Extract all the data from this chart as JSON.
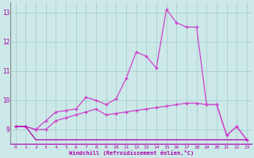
{
  "xlabel": "Windchill (Refroidissement éolien,°C)",
  "bg_color": "#cce8e8",
  "grid_color": "#aacfcf",
  "line_color": "#aa00aa",
  "line_color2": "#cc44cc",
  "xlim": [
    -0.5,
    23.5
  ],
  "ylim": [
    8.5,
    13.35
  ],
  "xticks": [
    0,
    1,
    2,
    3,
    4,
    5,
    6,
    7,
    8,
    9,
    10,
    11,
    12,
    13,
    14,
    15,
    16,
    17,
    18,
    19,
    20,
    21,
    22,
    23
  ],
  "yticks": [
    9,
    10,
    11,
    12,
    13
  ],
  "line1_x": [
    0,
    1,
    2,
    3,
    4,
    5,
    6,
    7,
    8,
    9,
    10,
    11,
    12,
    13,
    14,
    15,
    16,
    17,
    18,
    19,
    20,
    21,
    22,
    23
  ],
  "line1_y": [
    9.1,
    9.1,
    9.0,
    9.3,
    9.6,
    9.65,
    9.7,
    10.1,
    10.0,
    9.85,
    10.05,
    10.75,
    11.65,
    11.5,
    11.1,
    13.1,
    12.65,
    12.5,
    12.5,
    9.85,
    9.85,
    8.8,
    9.1,
    8.65
  ],
  "line2_x": [
    0,
    1,
    2,
    3,
    4,
    5,
    6,
    7,
    8,
    9,
    10,
    11,
    12,
    13,
    14,
    15,
    16,
    17,
    18,
    19,
    20,
    21,
    22,
    23
  ],
  "line2_y": [
    9.1,
    9.1,
    9.0,
    9.0,
    9.3,
    9.4,
    9.5,
    9.6,
    9.7,
    9.5,
    9.55,
    9.6,
    9.65,
    9.7,
    9.75,
    9.8,
    9.85,
    9.9,
    9.9,
    9.85,
    9.85,
    8.8,
    9.1,
    8.65
  ],
  "line3_x": [
    0,
    1,
    2,
    3,
    4,
    5,
    6,
    7,
    8,
    9,
    10,
    11,
    12,
    13,
    14,
    15,
    16,
    17,
    18,
    19,
    20,
    21,
    22,
    23
  ],
  "line3_y": [
    9.1,
    9.1,
    8.65,
    8.65,
    8.65,
    8.65,
    8.65,
    8.65,
    8.65,
    8.65,
    8.65,
    8.65,
    8.65,
    8.65,
    8.65,
    8.65,
    8.65,
    8.65,
    8.65,
    8.65,
    8.65,
    8.65,
    8.65,
    8.65
  ]
}
